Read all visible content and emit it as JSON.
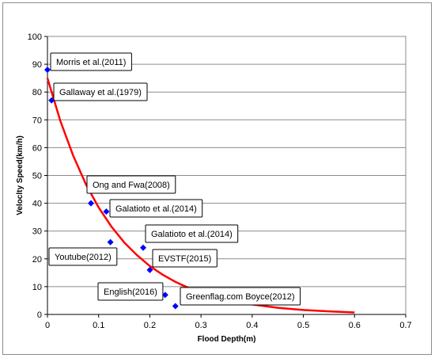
{
  "chart_data": {
    "type": "scatter",
    "xlabel": "Flood Depth(m)",
    "ylabel": "Veloclty Speed(km/h)",
    "xlim": [
      0,
      0.7
    ],
    "ylim": [
      0,
      100
    ],
    "x_ticks": [
      "0",
      "0.1",
      "0.2",
      "0.3",
      "0.4",
      "0.5",
      "0.6",
      "0.7"
    ],
    "y_ticks": [
      "0",
      "10",
      "20",
      "30",
      "40",
      "50",
      "60",
      "70",
      "80",
      "90",
      "100"
    ],
    "grid": "horizontal",
    "legend": "none",
    "marker_color": "#0000ff",
    "curve_color": "#ff0000",
    "points": [
      {
        "x": 0.0,
        "y": 88
      },
      {
        "x": 0.008,
        "y": 77
      },
      {
        "x": 0.085,
        "y": 40
      },
      {
        "x": 0.115,
        "y": 37
      },
      {
        "x": 0.123,
        "y": 26
      },
      {
        "x": 0.187,
        "y": 24
      },
      {
        "x": 0.2,
        "y": 16
      },
      {
        "x": 0.23,
        "y": 7
      },
      {
        "x": 0.25,
        "y": 3
      }
    ],
    "curve": {
      "x": [
        0,
        0.025,
        0.05,
        0.075,
        0.1,
        0.125,
        0.15,
        0.175,
        0.2,
        0.225,
        0.25,
        0.275,
        0.3,
        0.325,
        0.35,
        0.375,
        0.4,
        0.45,
        0.5,
        0.55,
        0.6
      ],
      "y": [
        85,
        69.7,
        57.2,
        46.9,
        38.5,
        31.6,
        25.9,
        21.3,
        17.4,
        14.3,
        11.7,
        9.6,
        7.9,
        6.5,
        5.3,
        4.4,
        3.6,
        2.4,
        1.6,
        1.1,
        0.7
      ]
    },
    "annotations": [
      {
        "text": "Morris et al.(2011)",
        "point": 0
      },
      {
        "text": "Gallaway et al.(1979)",
        "point": 1
      },
      {
        "text": "Ong and Fwa(2008)",
        "point": 2
      },
      {
        "text": "Galatioto et al.(2014)",
        "point": 3
      },
      {
        "text": "Galatioto et al.(2014)",
        "point": 5
      },
      {
        "text": "Youtube(2012)",
        "point": 4
      },
      {
        "text": "EVSTF(2015)",
        "point": 6
      },
      {
        "text": "English(2016)",
        "point": 7
      },
      {
        "text": "Greenflag.com Boyce(2012)",
        "point": 8
      }
    ]
  }
}
